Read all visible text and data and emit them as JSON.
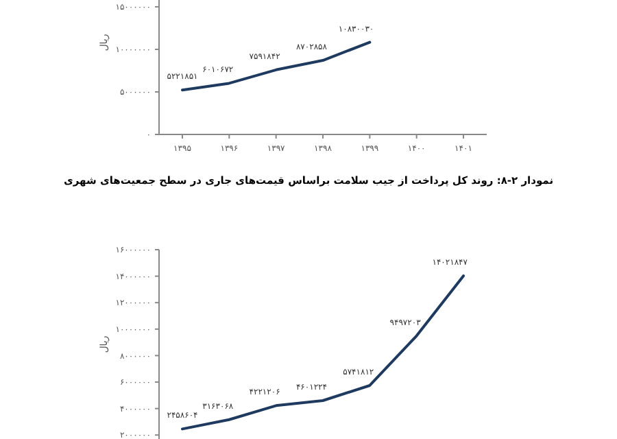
{
  "chart_data": [
    {
      "type": "line",
      "ylabel": "ریال",
      "categories": [
        "۱۳۹۵",
        "۱۳۹۶",
        "۱۳۹۷",
        "۱۳۹۸",
        "۱۳۹۹",
        "۱۴۰۰",
        "۱۴۰۱"
      ],
      "series": [
        {
          "color": "#1f3a5f",
          "values": [
            5221851,
            6010672,
            7591842,
            8702858,
            10830030,
            null,
            null
          ],
          "value_labels": [
            "۵۲۲۱۸۵۱",
            "۶۰۱۰۶۷۲",
            "۷۵۹۱۸۴۲",
            "۸۷۰۲۸۵۸",
            "۱۰۸۳۰۰۳۰",
            null,
            null
          ]
        }
      ],
      "ylim": [
        0,
        15800000
      ],
      "yticks": [
        {
          "value": 0,
          "label": "۰"
        },
        {
          "value": 5000000,
          "label": "۵۰۰۰۰۰۰"
        },
        {
          "value": 10000000,
          "label": "۱۰۰۰۰۰۰۰"
        },
        {
          "value": 15000000,
          "label": "۱۵۰۰۰۰۰۰"
        }
      ],
      "grid": false,
      "marker": "none"
    },
    {
      "type": "line",
      "title": "نمودار ۲-۸: روند کل پرداخت از جیب سلامت براساس قیمت‌های جاری در سطح جمعیت‌های شهری",
      "ylabel": "ریال",
      "categories": [
        null,
        null,
        null,
        null,
        null,
        null,
        null
      ],
      "series": [
        {
          "color": "#1f3a5f",
          "values": [
            2458604,
            3163068,
            4221206,
            4601224,
            5741812,
            9497203,
            14021847
          ],
          "value_labels": [
            "۲۴۵۸۶۰۴",
            "۳۱۶۳۰۶۸",
            "۴۲۲۱۲۰۶",
            "۴۶۰۱۲۲۴",
            "۵۷۴۱۸۱۲",
            "۹۴۹۷۲۰۳",
            "۱۴۰۲۱۸۴۷"
          ]
        }
      ],
      "ylim": [
        1700000,
        16000000
      ],
      "yticks": [
        {
          "value": 2000000,
          "label": "۲۰۰۰۰۰۰"
        },
        {
          "value": 4000000,
          "label": "۴۰۰۰۰۰۰"
        },
        {
          "value": 6000000,
          "label": "۶۰۰۰۰۰۰"
        },
        {
          "value": 8000000,
          "label": "۸۰۰۰۰۰۰"
        },
        {
          "value": 10000000,
          "label": "۱۰۰۰۰۰۰۰"
        },
        {
          "value": 12000000,
          "label": "۱۲۰۰۰۰۰۰"
        },
        {
          "value": 14000000,
          "label": "۱۴۰۰۰۰۰۰"
        },
        {
          "value": 16000000,
          "label": "۱۶۰۰۰۰۰۰"
        }
      ],
      "grid": false,
      "marker": "none"
    }
  ]
}
